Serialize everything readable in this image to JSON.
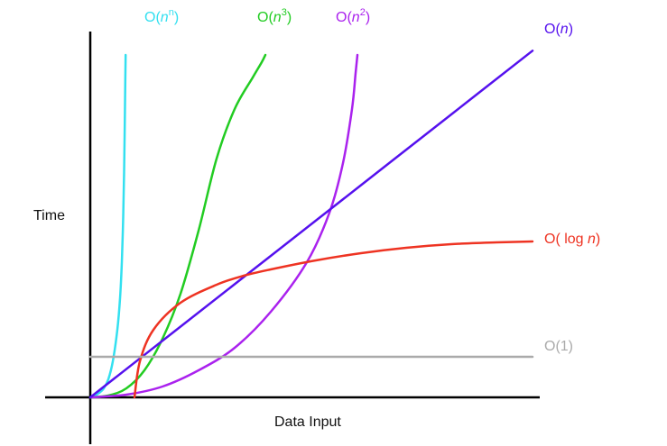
{
  "chart_data": {
    "type": "line",
    "title": "",
    "xlabel": "Data Input",
    "ylabel": "Time",
    "grid": false,
    "legend": "inline-labels",
    "series": [
      {
        "label": {
          "prefix": "O(",
          "var": "n",
          "sup": "n",
          "suffix": ")"
        },
        "color": "#33e0f0",
        "shape": "n^n",
        "points": [
          [
            0,
            0
          ],
          [
            5,
            2
          ],
          [
            10,
            5
          ],
          [
            15,
            10
          ],
          [
            20,
            20
          ],
          [
            25,
            40
          ],
          [
            30,
            75
          ],
          [
            33,
            110
          ],
          [
            35,
            150
          ],
          [
            36.5,
            200
          ],
          [
            37.5,
            250
          ],
          [
            38.2,
            300
          ],
          [
            38.8,
            350
          ],
          [
            39.2,
            380
          ]
        ]
      },
      {
        "label": {
          "prefix": "O(",
          "var": "n",
          "sup": "3",
          "suffix": ")"
        },
        "color": "#22cc22",
        "shape": "n^3",
        "points": [
          [
            0,
            0
          ],
          [
            20,
            2
          ],
          [
            40,
            10
          ],
          [
            60,
            30
          ],
          [
            80,
            65
          ],
          [
            100,
            115
          ],
          [
            120,
            185
          ],
          [
            140,
            265
          ],
          [
            160,
            320
          ],
          [
            180,
            355
          ],
          [
            190,
            372
          ],
          [
            194,
            380
          ]
        ]
      },
      {
        "label": {
          "prefix": "O(",
          "var": "n",
          "sup": "2",
          "suffix": ")"
        },
        "color": "#aa22ee",
        "shape": "n^2",
        "points": [
          [
            0,
            0
          ],
          [
            40,
            3
          ],
          [
            80,
            12
          ],
          [
            120,
            30
          ],
          [
            160,
            55
          ],
          [
            200,
            95
          ],
          [
            240,
            150
          ],
          [
            265,
            205
          ],
          [
            280,
            260
          ],
          [
            290,
            320
          ],
          [
            294,
            360
          ],
          [
            296,
            380
          ]
        ]
      },
      {
        "label": {
          "prefix": "O(",
          "var": "n",
          "sup": "",
          "suffix": ")"
        },
        "color": "#5511ee",
        "shape": "n",
        "points": [
          [
            0,
            0
          ],
          [
            100,
            78.5
          ],
          [
            200,
            157
          ],
          [
            300,
            235.5
          ],
          [
            400,
            314
          ],
          [
            490,
            384.7
          ]
        ]
      },
      {
        "label": {
          "prefix": "O( log ",
          "var": "n",
          "sup": "",
          "suffix": ")"
        },
        "color": "#ee3322",
        "shape": "log n",
        "points": [
          [
            49,
            0
          ],
          [
            55,
            40
          ],
          [
            70,
            75
          ],
          [
            100,
            105
          ],
          [
            140,
            125
          ],
          [
            170,
            135
          ],
          [
            200,
            142
          ],
          [
            250,
            152
          ],
          [
            300,
            160
          ],
          [
            350,
            166
          ],
          [
            400,
            170
          ],
          [
            450,
            172
          ],
          [
            490,
            173
          ]
        ]
      },
      {
        "label": {
          "prefix": "O(1)",
          "var": "",
          "sup": "",
          "suffix": ""
        },
        "color": "#aaaaaa",
        "shape": "constant",
        "points": [
          [
            0,
            45
          ],
          [
            490,
            45
          ]
        ]
      }
    ]
  }
}
